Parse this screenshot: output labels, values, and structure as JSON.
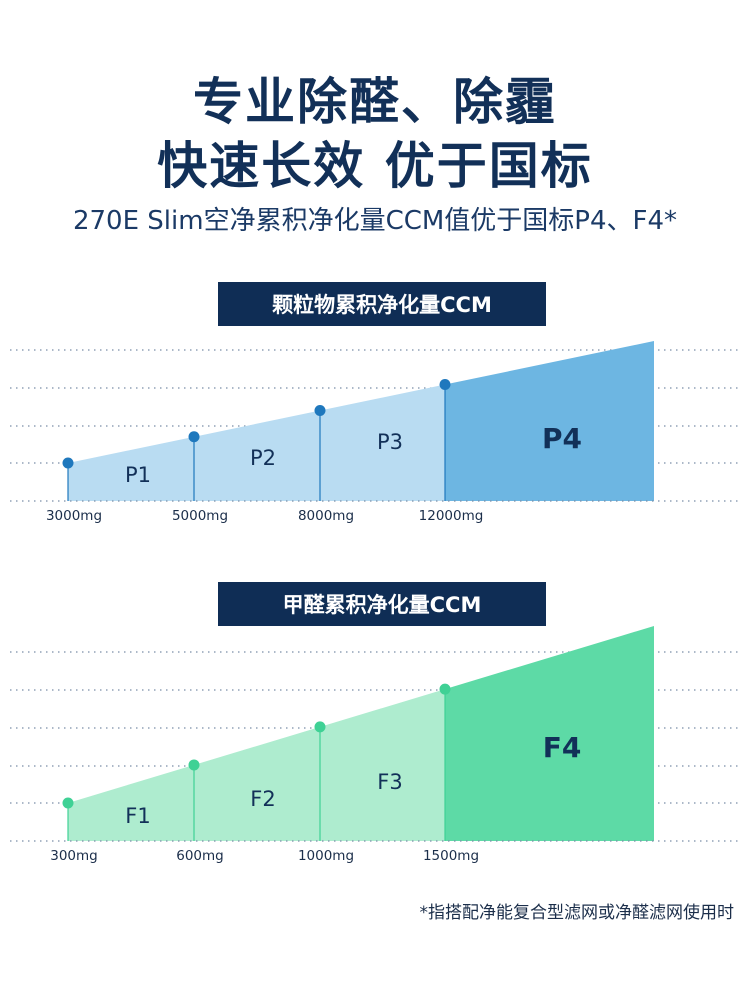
{
  "headline": {
    "line1": "专业除醛、除霾",
    "line2": "快速长效 优于国标",
    "subtitle": "270E Slim空净累积净化量CCM值优于国标P4、F4*"
  },
  "colors": {
    "navy": "#0f2d55",
    "particle_light": "#b9dcf2",
    "particle_dark": "#6db6e2",
    "particle_dot": "#1f78bd",
    "formaldehyde_light": "#aeeccf",
    "formaldehyde_dark": "#5ddaa6",
    "formaldehyde_dot": "#3fd195"
  },
  "chart_data": [
    {
      "type": "area",
      "title": "颗粒物累积净化量CCM",
      "x": [
        "3000mg",
        "5000mg",
        "8000mg",
        "12000mg"
      ],
      "grades": [
        "P1",
        "P2",
        "P3",
        "P4"
      ]
    },
    {
      "type": "area",
      "title": "甲醛累积净化量CCM",
      "x": [
        "300mg",
        "600mg",
        "1000mg",
        "1500mg"
      ],
      "grades": [
        "F1",
        "F2",
        "F3",
        "F4"
      ]
    }
  ],
  "footnote": "*指搭配净能复合型滤网或净醛滤网使用时"
}
